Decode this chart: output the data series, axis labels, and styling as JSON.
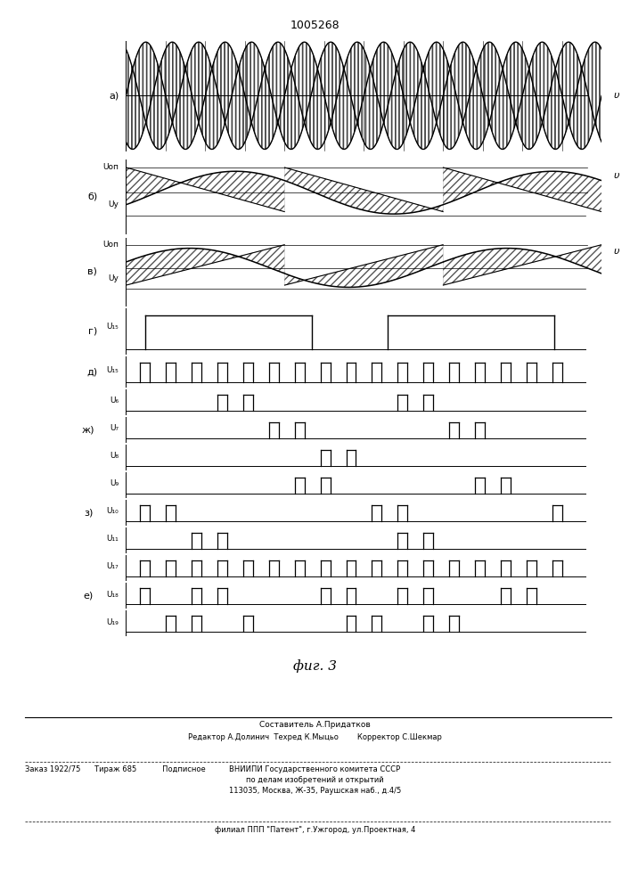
{
  "title": "1005268",
  "fig_label": "фиг. 3",
  "panel_a": "а)",
  "panel_b": "б)",
  "panel_v": "в)",
  "panel_g": "г)",
  "panel_d": "д)",
  "panel_zh": "ж)",
  "panel_z": "з)",
  "panel_e": "е)",
  "U_on": "Uоп",
  "U_y": "Uу",
  "U15g": "U₁₅",
  "U15d": "U₁₅",
  "U6": "U₆",
  "U7": "U₇",
  "U8": "U₈",
  "U9": "U₉",
  "U10": "U₁₀",
  "U11": "U₁₁",
  "U17": "U₁₇",
  "U18": "U₁₈",
  "U19": "U₁₉",
  "footer1": "Составитель А.Придатков",
  "footer2": "Редактор А.Долинич  Техред К.Мыцьо        Корректор С.Шекмар",
  "footer3": "Заказ 1922/75      Тираж 685           Подписное",
  "footer4": "ВНИИПИ Государственного комитета СССР",
  "footer5": "по делам изобретений и открытий",
  "footer6": "113035, Москва, Ж-35, Раушская наб., д.4/5",
  "footer7": "филиал ППП \"Патент\", г.Ужгород, ул.Проектная, 4"
}
